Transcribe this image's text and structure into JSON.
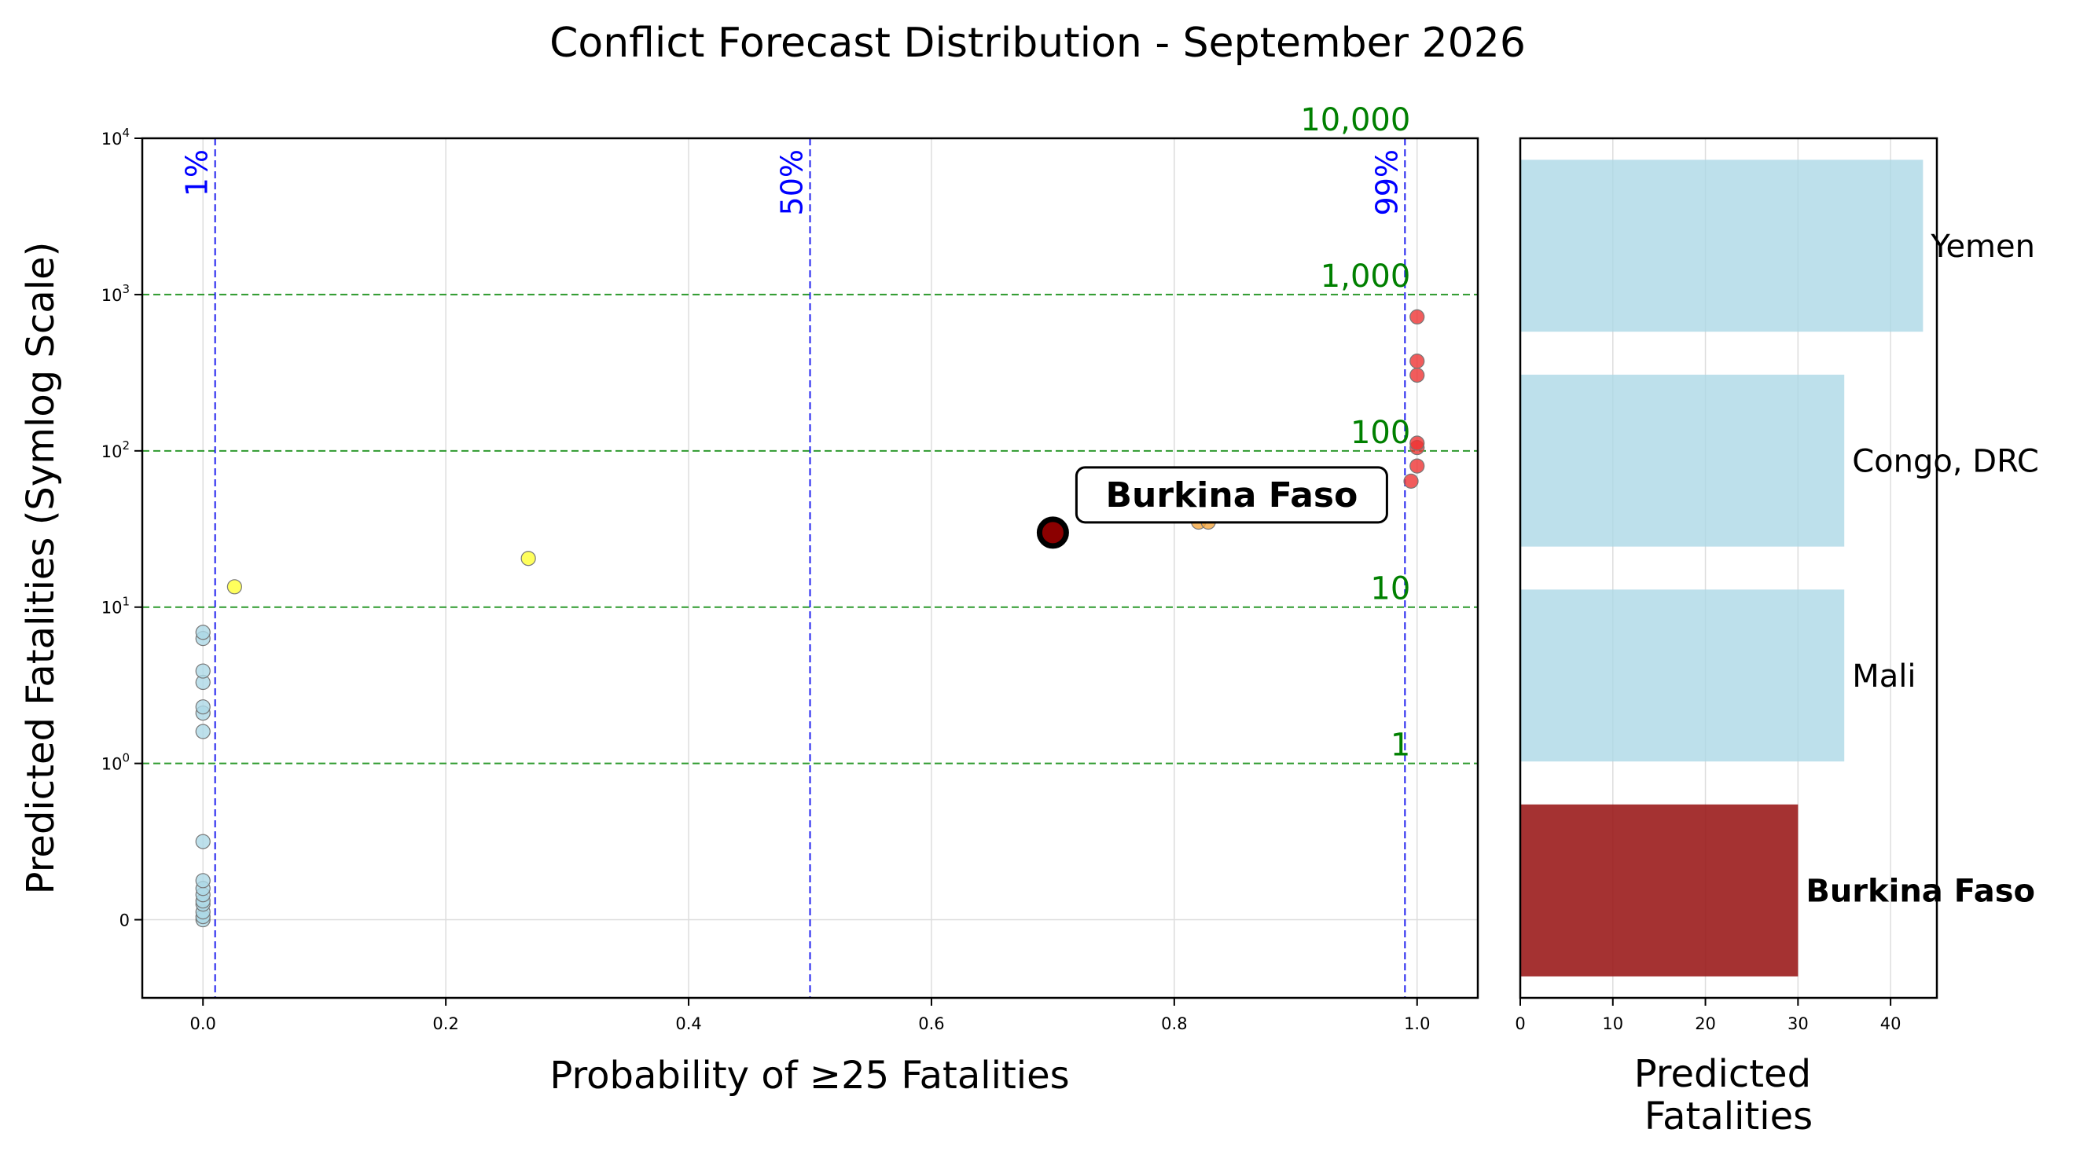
{
  "figure_title": "Conflict Forecast Distribution - September 2026",
  "colors": {
    "threshold_line": "#2222ee",
    "reference_line": "#2e9a2e",
    "reference_text": "#008000",
    "bar": "#add8e6",
    "bar_highlight": "#9b1c1c",
    "grid": "#dddddd"
  },
  "chart_data": [
    {
      "type": "scatter",
      "title": "",
      "xlabel": "Probability of ≥25 Fatalities",
      "ylabel": "Predicted Fatalities (Symlog Scale)",
      "yscale": "symlog",
      "xlim": [
        -0.05,
        1.05
      ],
      "ylim": [
        -0.5,
        10000
      ],
      "xticks": [
        0.0,
        0.2,
        0.4,
        0.6,
        0.8,
        1.0
      ],
      "xtick_labels": [
        "0.0",
        "0.2",
        "0.4",
        "0.6",
        "0.8",
        "1.0"
      ],
      "yticks": [
        {
          "value": 0,
          "base": "0",
          "exp": ""
        },
        {
          "value": 1,
          "base": "10",
          "exp": "0"
        },
        {
          "value": 10,
          "base": "10",
          "exp": "1"
        },
        {
          "value": 100,
          "base": "10",
          "exp": "2"
        },
        {
          "value": 1000,
          "base": "10",
          "exp": "3"
        },
        {
          "value": 10000,
          "base": "10",
          "exp": "4"
        }
      ],
      "threshold_lines": [
        {
          "x": 0.01,
          "label": "1%"
        },
        {
          "x": 0.5,
          "label": "50%"
        },
        {
          "x": 0.99,
          "label": "99%"
        }
      ],
      "reference_lines": [
        {
          "y": 10000,
          "label": "10,000"
        },
        {
          "y": 1000,
          "label": "1,000"
        },
        {
          "y": 100,
          "label": "100"
        },
        {
          "y": 10,
          "label": "10"
        },
        {
          "y": 1,
          "label": "1"
        }
      ],
      "points": [
        {
          "x": 0.0,
          "y": 0.0,
          "color": "#add8e6"
        },
        {
          "x": 0.0,
          "y": 0.02,
          "color": "#add8e6"
        },
        {
          "x": 0.0,
          "y": 0.05,
          "color": "#add8e6"
        },
        {
          "x": 0.0,
          "y": 0.1,
          "color": "#add8e6"
        },
        {
          "x": 0.0,
          "y": 0.12,
          "color": "#add8e6"
        },
        {
          "x": 0.0,
          "y": 0.16,
          "color": "#add8e6"
        },
        {
          "x": 0.0,
          "y": 0.2,
          "color": "#add8e6"
        },
        {
          "x": 0.0,
          "y": 0.25,
          "color": "#add8e6"
        },
        {
          "x": 0.0,
          "y": 0.5,
          "color": "#add8e6"
        },
        {
          "x": 0.0,
          "y": 1.6,
          "color": "#add8e6"
        },
        {
          "x": 0.0,
          "y": 2.1,
          "color": "#add8e6"
        },
        {
          "x": 0.0,
          "y": 2.3,
          "color": "#add8e6"
        },
        {
          "x": 0.0,
          "y": 3.3,
          "color": "#add8e6"
        },
        {
          "x": 0.0,
          "y": 3.9,
          "color": "#add8e6"
        },
        {
          "x": 0.0,
          "y": 6.3,
          "color": "#add8e6"
        },
        {
          "x": 0.0,
          "y": 6.9,
          "color": "#add8e6"
        },
        {
          "x": 0.026,
          "y": 13.5,
          "color": "#ffff33"
        },
        {
          "x": 0.268,
          "y": 20.5,
          "color": "#ffff33"
        },
        {
          "x": 0.82,
          "y": 35,
          "color": "#f4a640"
        },
        {
          "x": 0.828,
          "y": 35,
          "color": "#f4a640"
        },
        {
          "x": 0.995,
          "y": 64,
          "color": "#ee3333"
        },
        {
          "x": 1.0,
          "y": 80,
          "color": "#ee3333"
        },
        {
          "x": 1.0,
          "y": 105,
          "color": "#ee3333"
        },
        {
          "x": 1.0,
          "y": 112,
          "color": "#ee3333"
        },
        {
          "x": 1.0,
          "y": 305,
          "color": "#ee3333"
        },
        {
          "x": 1.0,
          "y": 375,
          "color": "#ee3333"
        },
        {
          "x": 1.0,
          "y": 720,
          "color": "#ee3333"
        }
      ],
      "highlight": {
        "label": "Burkina Faso",
        "x": 0.7,
        "y": 30
      }
    },
    {
      "type": "bar",
      "orientation": "horizontal",
      "xlabel": "Predicted\nFatalities",
      "xlim": [
        0,
        45
      ],
      "xticks": [
        0,
        10,
        20,
        30,
        40
      ],
      "categories": [
        "Yemen",
        "Congo, DRC",
        "Mali",
        "Burkina Faso"
      ],
      "values": [
        43.5,
        35,
        35,
        30
      ],
      "highlight": "Burkina Faso"
    }
  ]
}
